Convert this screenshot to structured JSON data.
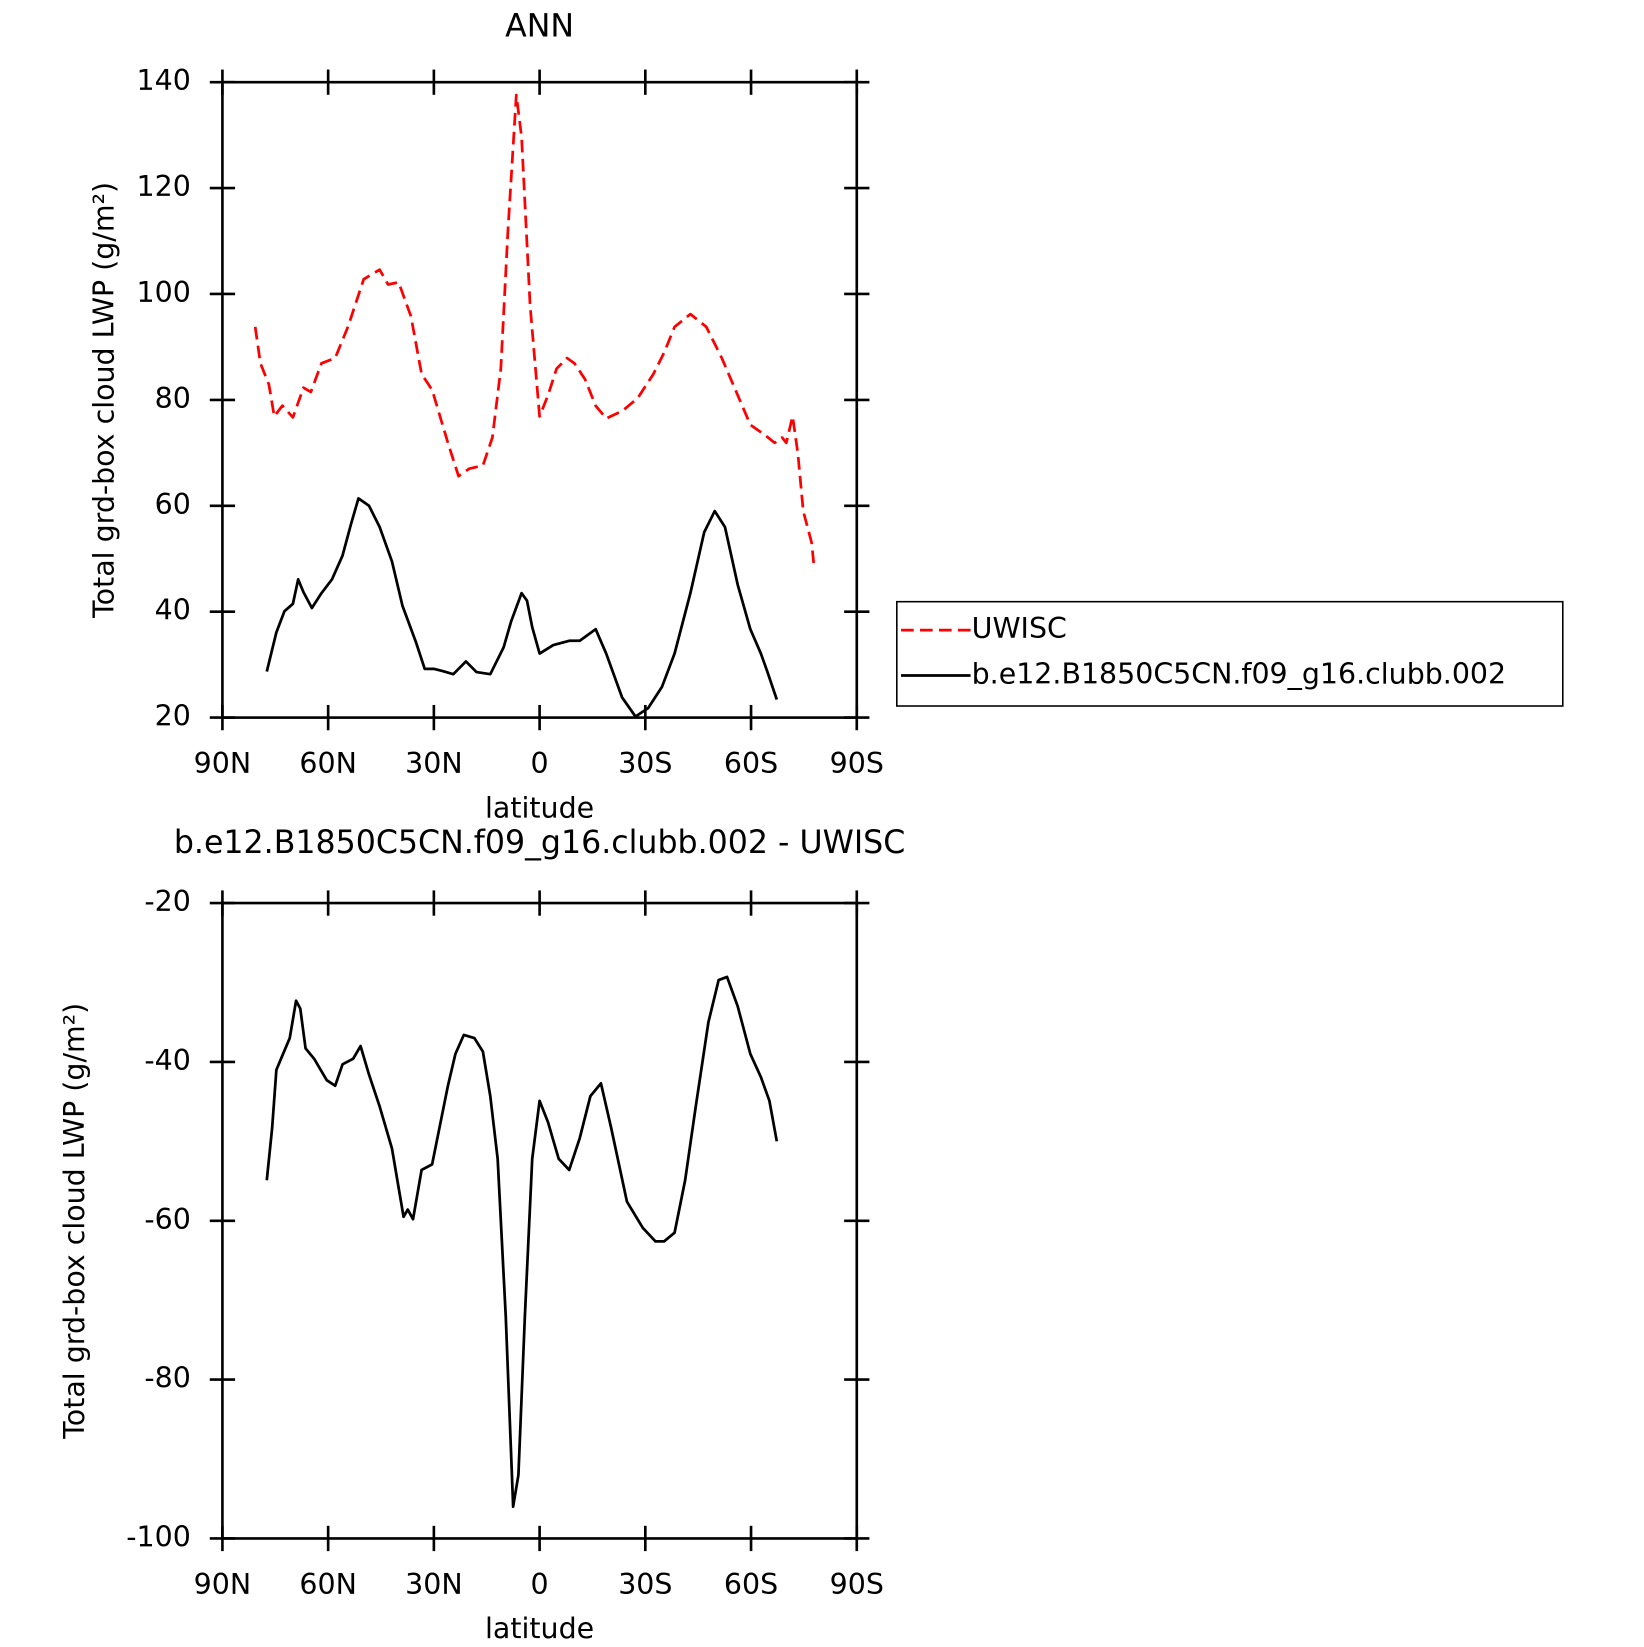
{
  "chart_data": [
    {
      "type": "line",
      "title": "ANN",
      "xlabel": "latitude",
      "ylabel": "Total grd-box cloud LWP (g/m²)",
      "xlim": [
        90,
        -90
      ],
      "xticks": [
        {
          "value": 90,
          "label": "90N"
        },
        {
          "value": 60,
          "label": "60N"
        },
        {
          "value": 30,
          "label": "30N"
        },
        0,
        {
          "value": -30,
          "label": "30S"
        },
        {
          "value": -60,
          "label": "60S"
        },
        {
          "value": -90,
          "label": "90S"
        }
      ],
      "ylim": [
        20,
        140
      ],
      "yticks": [
        20,
        40,
        60,
        80,
        100,
        120,
        140
      ],
      "legend": "right",
      "series": [
        {
          "name": "UWISC",
          "color": "#ff0000",
          "dash": true,
          "x": [
            80.7,
            79.2,
            76.8,
            75.3,
            73,
            70,
            67,
            64.9,
            61.9,
            58,
            54.4,
            49.9,
            45.4,
            43,
            40,
            36.5,
            33.5,
            30.5,
            26,
            23,
            20,
            16.1,
            13.4,
            11,
            9,
            6.6,
            5.1,
            2.7,
            0,
            -2.4,
            -4.8,
            -7.8,
            -9.9,
            -12.9,
            -15.9,
            -18.9,
            -23.4,
            -27.8,
            -32.3,
            -35.3,
            -38.3,
            -42.8,
            -47.3,
            -51.7,
            -56.2,
            -59.8,
            -63.7,
            -66.7,
            -68.8,
            -70,
            -71.8,
            -73.3,
            -74.8,
            -77.2,
            -77.8
          ],
          "values": [
            93.8,
            86.9,
            82.9,
            76.9,
            78.9,
            76.7,
            82.3,
            81.5,
            86.9,
            87.9,
            93.8,
            102.8,
            104.6,
            101.8,
            102.2,
            95.8,
            84.9,
            81.9,
            71.9,
            65.6,
            67,
            67.6,
            72.9,
            85.9,
            111.8,
            137.6,
            129.7,
            97.8,
            76.9,
            80.9,
            85.9,
            87.9,
            86.9,
            83.9,
            78.9,
            76.5,
            77.9,
            80.3,
            84.9,
            88.9,
            93.8,
            96.2,
            93.8,
            87.9,
            80.9,
            75.3,
            73.5,
            71.9,
            72.9,
            71.9,
            76.9,
            69.9,
            59,
            53,
            49
          ]
        },
        {
          "name": "b.e12.B1850C5CN.f09_g16.clubb.002",
          "color": "#000000",
          "dash": false,
          "x": [
            77.4,
            74.7,
            72.4,
            70,
            68.5,
            67,
            64.6,
            61.9,
            58.9,
            55.9,
            53.5,
            51.4,
            48.4,
            45.4,
            41.9,
            38.9,
            35,
            32.6,
            29.9,
            27.5,
            24.5,
            20.9,
            17.9,
            14,
            10.2,
            8.1,
            5.1,
            3.6,
            2.1,
            0,
            -3.9,
            -8.4,
            -11.4,
            -15.9,
            -18.9,
            -23.4,
            -27.2,
            -30.8,
            -34.7,
            -38.3,
            -42.8,
            -46.7,
            -49.7,
            -52.6,
            -56.2,
            -59.8,
            -62.8,
            -64.6,
            -67.3
          ],
          "values": [
            28.7,
            36.1,
            40.1,
            41.5,
            46.1,
            43.7,
            40.7,
            43.5,
            46.1,
            50.6,
            56.6,
            61.4,
            60,
            56,
            49.5,
            41.1,
            34.1,
            29.2,
            29.2,
            28.8,
            28.2,
            30.6,
            28.6,
            28.2,
            33.3,
            38.1,
            43.5,
            42.1,
            37.1,
            32.1,
            33.7,
            34.5,
            34.5,
            36.7,
            32.1,
            23.8,
            20.2,
            21.8,
            25.8,
            32.1,
            43.5,
            55,
            59,
            56,
            45.1,
            36.7,
            32.1,
            28.7,
            23.4
          ]
        }
      ]
    },
    {
      "type": "line",
      "title": "b.e12.B1850C5CN.f09_g16.clubb.002 - UWISC",
      "xlabel": "latitude",
      "ylabel": "Total grd-box cloud LWP (g/m²)",
      "xlim": [
        90,
        -90
      ],
      "xticks": [
        {
          "value": 90,
          "label": "90N"
        },
        {
          "value": 60,
          "label": "60N"
        },
        {
          "value": 30,
          "label": "30N"
        },
        0,
        {
          "value": -30,
          "label": "30S"
        },
        {
          "value": -60,
          "label": "60S"
        },
        {
          "value": -90,
          "label": "90S"
        }
      ],
      "ylim": [
        -100,
        -20
      ],
      "yticks": [
        -100,
        -80,
        -60,
        -40,
        -20
      ],
      "series": [
        {
          "color": "#000000",
          "dash": false,
          "x": [
            77.4,
            75.9,
            74.7,
            73,
            70.9,
            69.1,
            67.9,
            66.4,
            64,
            60.4,
            58,
            55.9,
            52.9,
            50.8,
            48.4,
            45.4,
            41.9,
            40.1,
            38.6,
            37.4,
            35.9,
            33.5,
            30.5,
            29,
            26,
            23.9,
            21.5,
            18.5,
            16.1,
            14,
            11.9,
            9.6,
            7.5,
            6,
            4.2,
            2.1,
            0,
            -2.4,
            -5.4,
            -8.4,
            -11.4,
            -14.4,
            -17.4,
            -20.3,
            -24.8,
            -29.3,
            -32.9,
            -35.3,
            -38.3,
            -41.3,
            -44.3,
            -47.9,
            -50.8,
            -53.2,
            -56.2,
            -59.8,
            -62.8,
            -65.2,
            -67.3
          ],
          "values": [
            -54.9,
            -48.3,
            -41,
            -39.2,
            -37,
            -32.3,
            -33.3,
            -38.3,
            -39.6,
            -42.3,
            -43,
            -40.3,
            -39.6,
            -38,
            -41.6,
            -45.6,
            -50.9,
            -55.6,
            -59.5,
            -58.6,
            -59.8,
            -53.6,
            -52.9,
            -49.6,
            -43,
            -39,
            -36.6,
            -37,
            -38.7,
            -44.3,
            -52.2,
            -72.1,
            -96,
            -92,
            -72.1,
            -52.2,
            -44.9,
            -47.6,
            -52.2,
            -53.6,
            -49.6,
            -44.3,
            -42.7,
            -48.3,
            -57.6,
            -60.9,
            -62.6,
            -62.6,
            -61.5,
            -54.9,
            -45.6,
            -35,
            -29.7,
            -29.3,
            -33,
            -39,
            -41.9,
            -44.9,
            -50
          ]
        }
      ]
    }
  ]
}
